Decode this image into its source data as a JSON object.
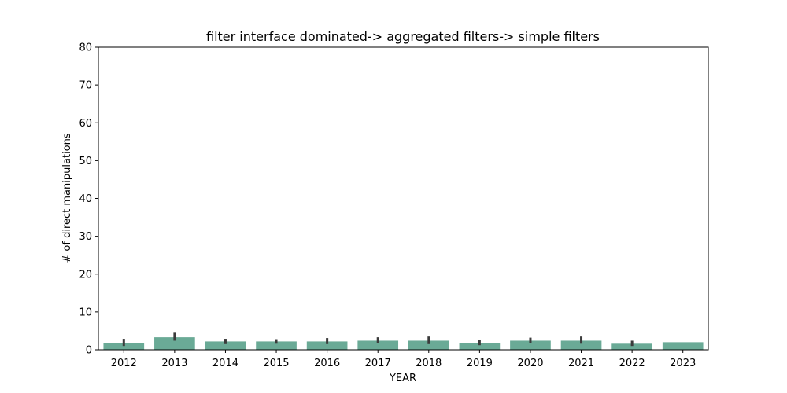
{
  "chart_data": {
    "type": "bar",
    "title": "filter interface dominated-> aggregated filters-> simple filters",
    "xlabel": "YEAR",
    "ylabel": "# of direct manipulations",
    "ylim": [
      0,
      80
    ],
    "yticks": [
      0,
      10,
      20,
      30,
      40,
      50,
      60,
      70,
      80
    ],
    "categories": [
      "2012",
      "2013",
      "2014",
      "2015",
      "2016",
      "2017",
      "2018",
      "2019",
      "2020",
      "2021",
      "2022",
      "2023"
    ],
    "values": [
      1.8,
      3.3,
      2.2,
      2.2,
      2.2,
      2.4,
      2.4,
      1.8,
      2.4,
      2.4,
      1.6,
      2.0
    ],
    "error_bars": [
      [
        1.0,
        2.9
      ],
      [
        2.4,
        4.5
      ],
      [
        1.5,
        2.9
      ],
      [
        1.6,
        2.8
      ],
      [
        1.5,
        3.1
      ],
      [
        1.7,
        3.3
      ],
      [
        1.5,
        3.5
      ],
      [
        1.2,
        2.6
      ],
      [
        1.7,
        3.2
      ],
      [
        1.6,
        3.5
      ],
      [
        1.0,
        2.4
      ],
      null
    ],
    "bar_color": "#6aaa96",
    "error_color": "#3b3b3b",
    "grid": false,
    "legend": "none"
  }
}
